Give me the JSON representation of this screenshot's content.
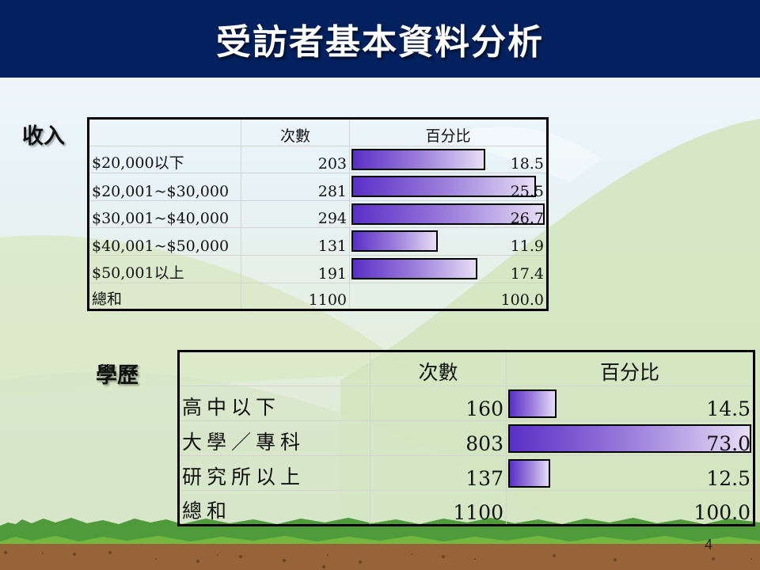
{
  "slide": {
    "title": "受訪者基本資料分析",
    "page_number": "4",
    "colors": {
      "title_bar": "#03215e",
      "bar_gradient_start": "#5a2fc6",
      "bar_gradient_end": "#e6ddf5",
      "grass": "#4f9a3a",
      "soil": "#97643a"
    }
  },
  "income": {
    "label": "收入",
    "headers": [
      "",
      "次數",
      "百分比"
    ],
    "rows": [
      {
        "category": "$20,000以下",
        "count": "203",
        "percent": "18.5",
        "bar_pct": 18.5
      },
      {
        "category": "$20,001~$30,000",
        "count": "281",
        "percent": "25.5",
        "bar_pct": 25.5
      },
      {
        "category": "$30,001~$40,000",
        "count": "294",
        "percent": "26.7",
        "bar_pct": 26.7
      },
      {
        "category": "$40,001~$50,000",
        "count": "131",
        "percent": "11.9",
        "bar_pct": 11.9
      },
      {
        "category": "$50,001以上",
        "count": "191",
        "percent": "17.4",
        "bar_pct": 17.4
      }
    ],
    "total": {
      "category": "總和",
      "count": "1100",
      "percent": "100.0"
    }
  },
  "education": {
    "label": "學歷",
    "headers": [
      "",
      "次數",
      "百分比"
    ],
    "rows": [
      {
        "category": "高中以下",
        "count": "160",
        "percent": "14.5",
        "bar_pct": 14.5
      },
      {
        "category": "大學／專科",
        "count": "803",
        "percent": "73.0",
        "bar_pct": 73.0
      },
      {
        "category": "研究所以上",
        "count": "137",
        "percent": "12.5",
        "bar_pct": 12.5
      }
    ],
    "total": {
      "category": "總和",
      "count": "1100",
      "percent": "100.0"
    }
  }
}
